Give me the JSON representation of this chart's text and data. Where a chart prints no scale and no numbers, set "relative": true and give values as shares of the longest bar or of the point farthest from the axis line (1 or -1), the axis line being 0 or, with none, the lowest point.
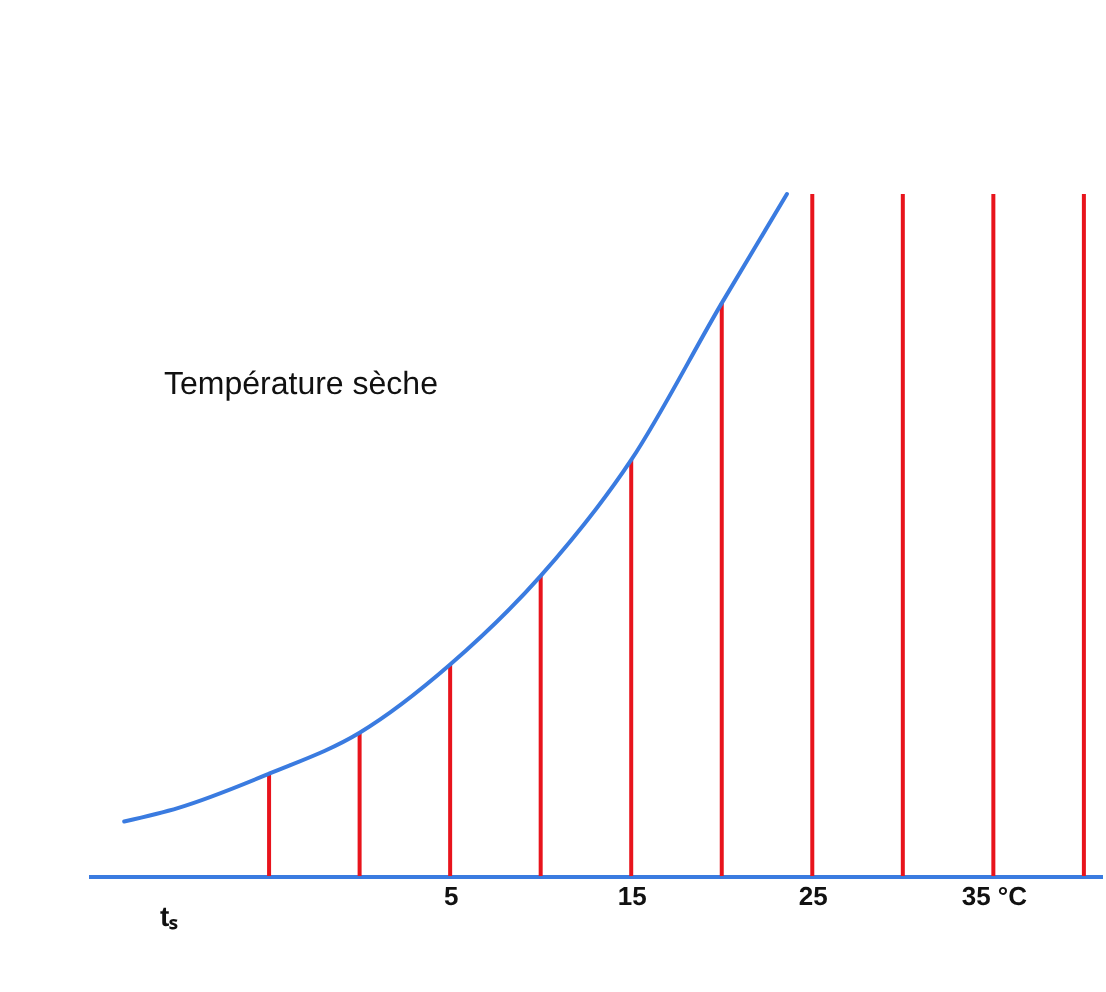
{
  "chart_data": {
    "type": "line",
    "relative": true,
    "tick_labels": "x",
    "grid": false,
    "legend": false,
    "marker": "none",
    "xlim": [
      -15,
      41
    ],
    "xticks": [
      5,
      15,
      25,
      {
        "value": 35,
        "label": "35 °C"
      }
    ],
    "annotations": [
      "Température sèche",
      "tₛ"
    ],
    "series": [
      {
        "type": "bar",
        "color": "#e8141c",
        "x": [
          -5,
          0,
          5,
          10,
          15,
          20,
          25,
          30,
          35,
          40
        ],
        "values": [
          0.15,
          0.21,
          0.31,
          0.44,
          0.61,
          0.84,
          1,
          1,
          1,
          1
        ]
      },
      {
        "color": "#3a7be0",
        "x": [
          -13,
          -10,
          -5,
          0,
          5,
          10,
          15,
          20,
          23.6
        ],
        "values": [
          0.08,
          0.1,
          0.15,
          0.21,
          0.31,
          0.44,
          0.61,
          0.84,
          1
        ]
      }
    ]
  }
}
